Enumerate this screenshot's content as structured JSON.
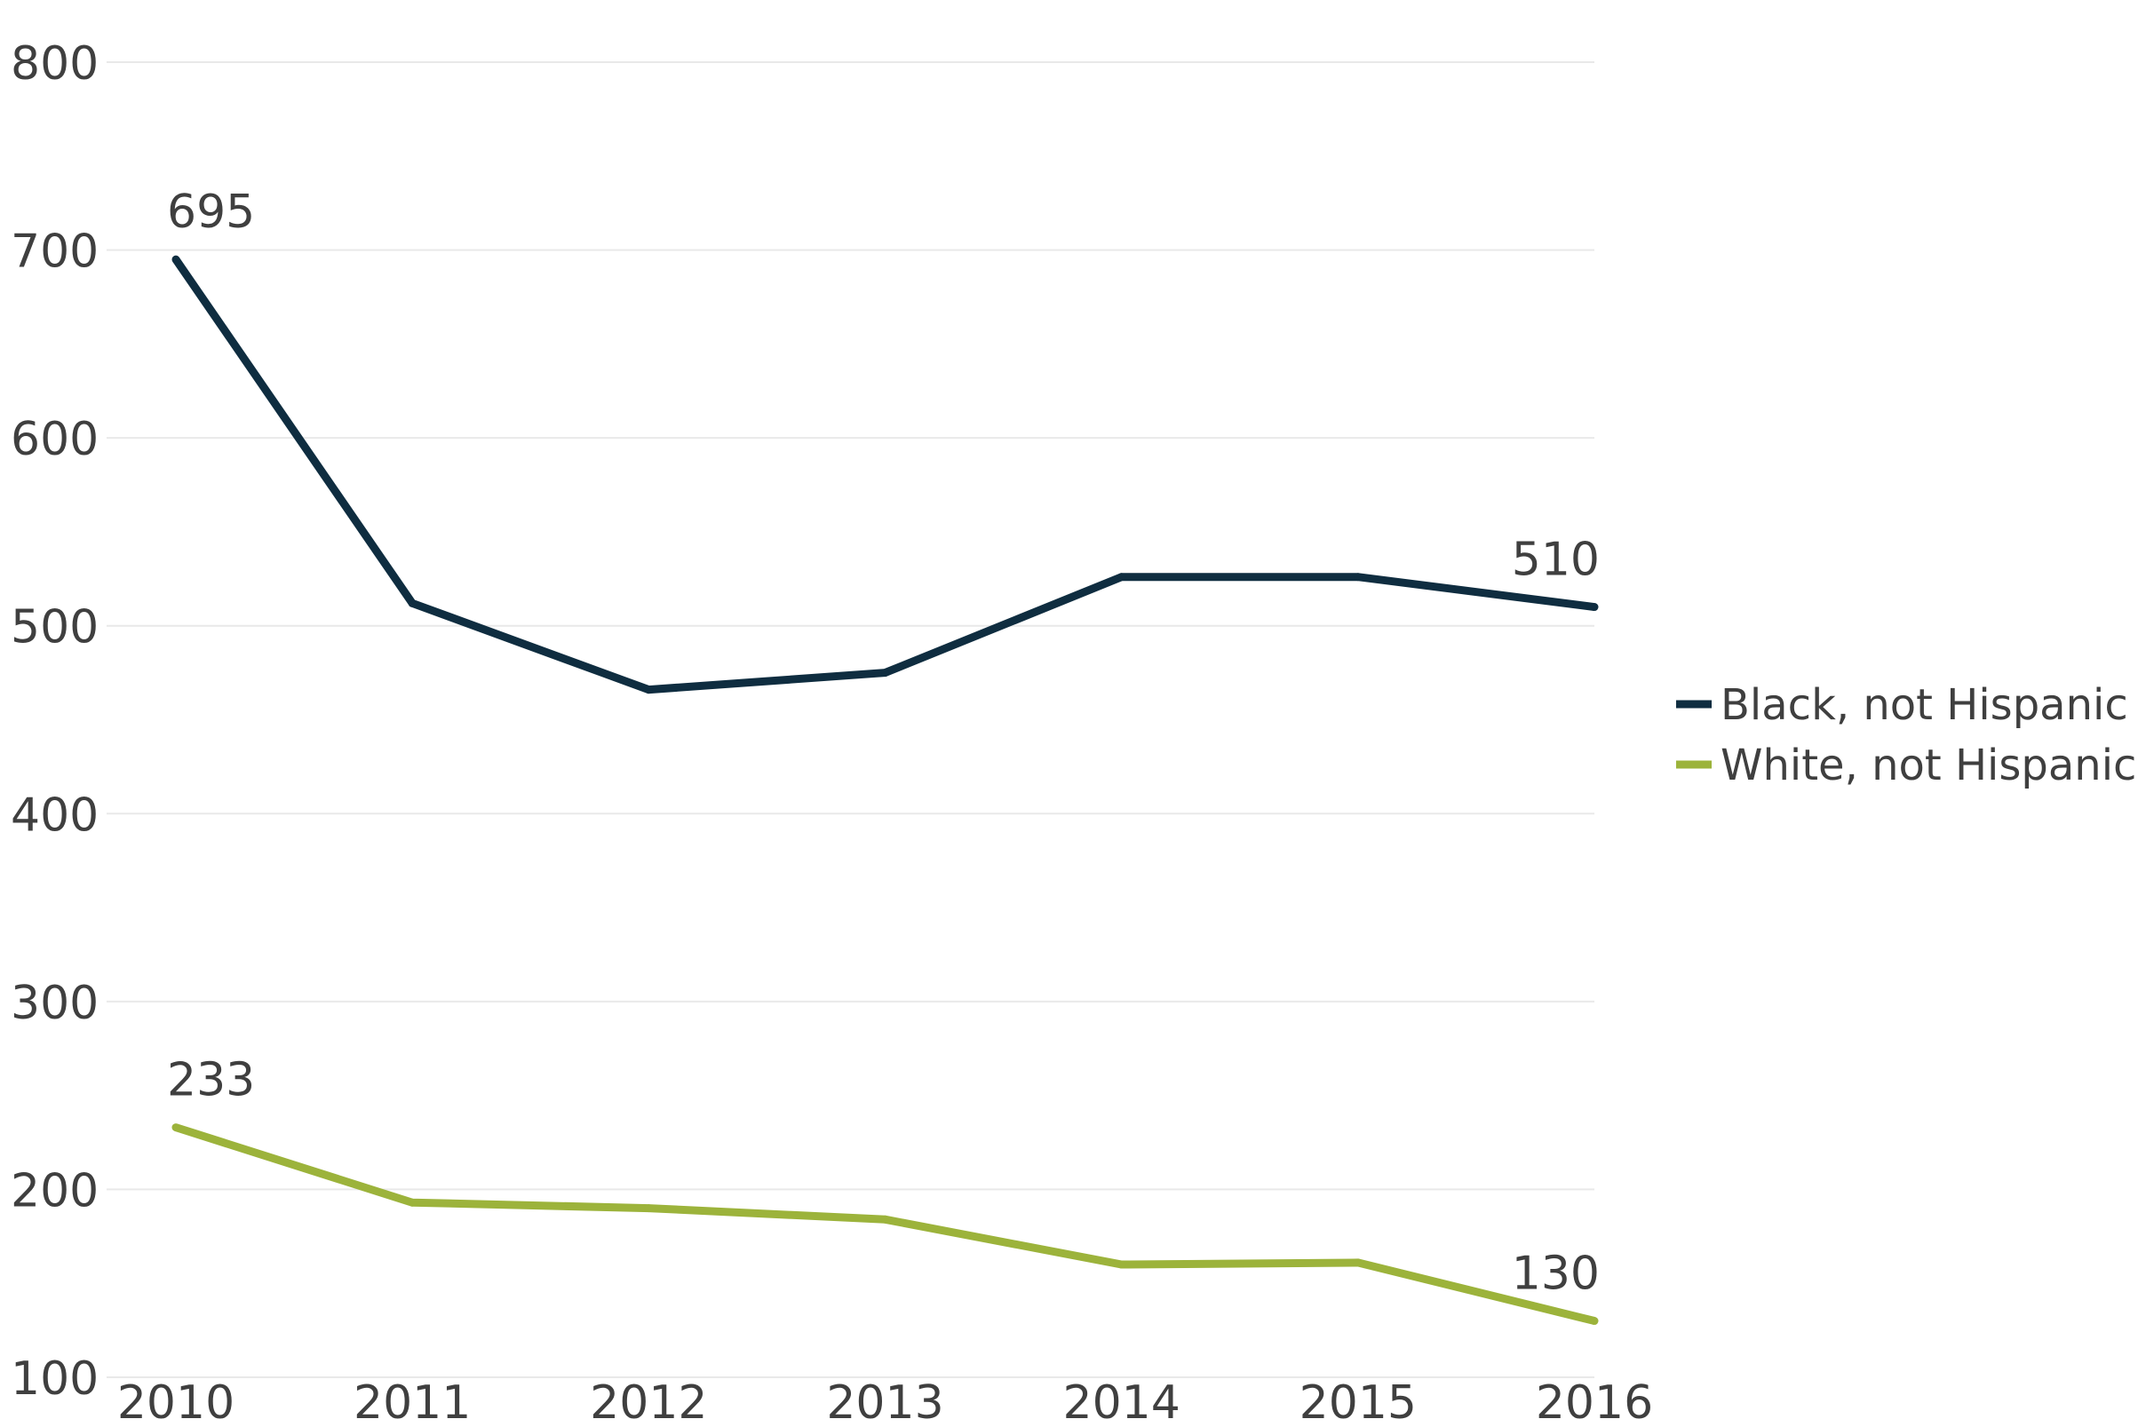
{
  "chart_data": {
    "type": "line",
    "title": "",
    "xlabel": "",
    "ylabel": "",
    "x": [
      "2010",
      "2011",
      "2012",
      "2013",
      "2014",
      "2015",
      "2016"
    ],
    "y_ticks": [
      "100",
      "200",
      "300",
      "400",
      "500",
      "600",
      "700",
      "800"
    ],
    "ylim": [
      100,
      800
    ],
    "grid": true,
    "legend_position": "right",
    "series": [
      {
        "name": "Black, not Hispanic",
        "color": "#0f2d40",
        "values": [
          695,
          512,
          466,
          475,
          526,
          526,
          510
        ],
        "labels": [
          {
            "index": 0,
            "text": "695"
          },
          {
            "index": 6,
            "text": "510"
          }
        ]
      },
      {
        "name": "White, not Hispanic",
        "color": "#9cb33b",
        "values": [
          233,
          193,
          190,
          184,
          160,
          161,
          130
        ],
        "labels": [
          {
            "index": 0,
            "text": "233"
          },
          {
            "index": 6,
            "text": "130"
          }
        ]
      }
    ]
  }
}
